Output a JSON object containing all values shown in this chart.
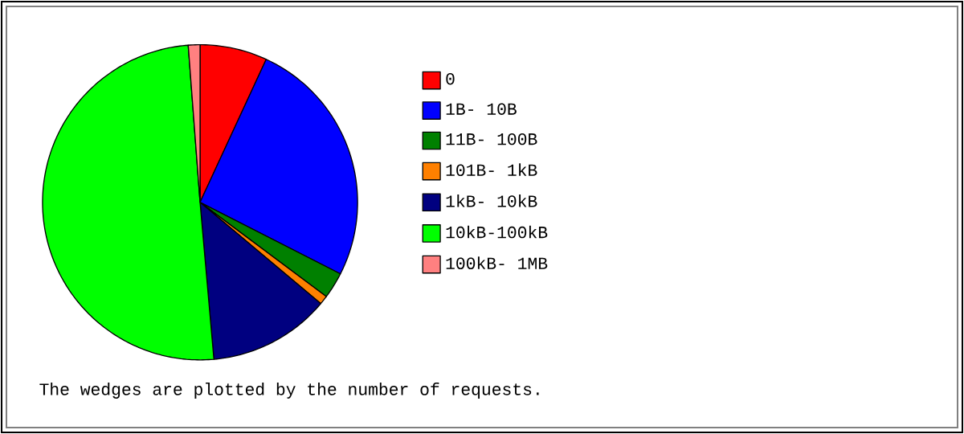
{
  "chart_data": {
    "type": "pie",
    "categories": [
      "0",
      "1B- 10B",
      "11B- 100B",
      "101B- 1kB",
      "1kB- 10kB",
      "10kB-100kB",
      "100kB- 1MB"
    ],
    "values": [
      6.9,
      25.6,
      2.7,
      0.9,
      12.5,
      50.2,
      1.2
    ],
    "colors": [
      "#ff0000",
      "#0000ff",
      "#008000",
      "#ff8000",
      "#000080",
      "#00ff00",
      "#ff8080"
    ],
    "legend": "right",
    "annotations": [
      "The wedges are plotted by the number of requests."
    ]
  }
}
